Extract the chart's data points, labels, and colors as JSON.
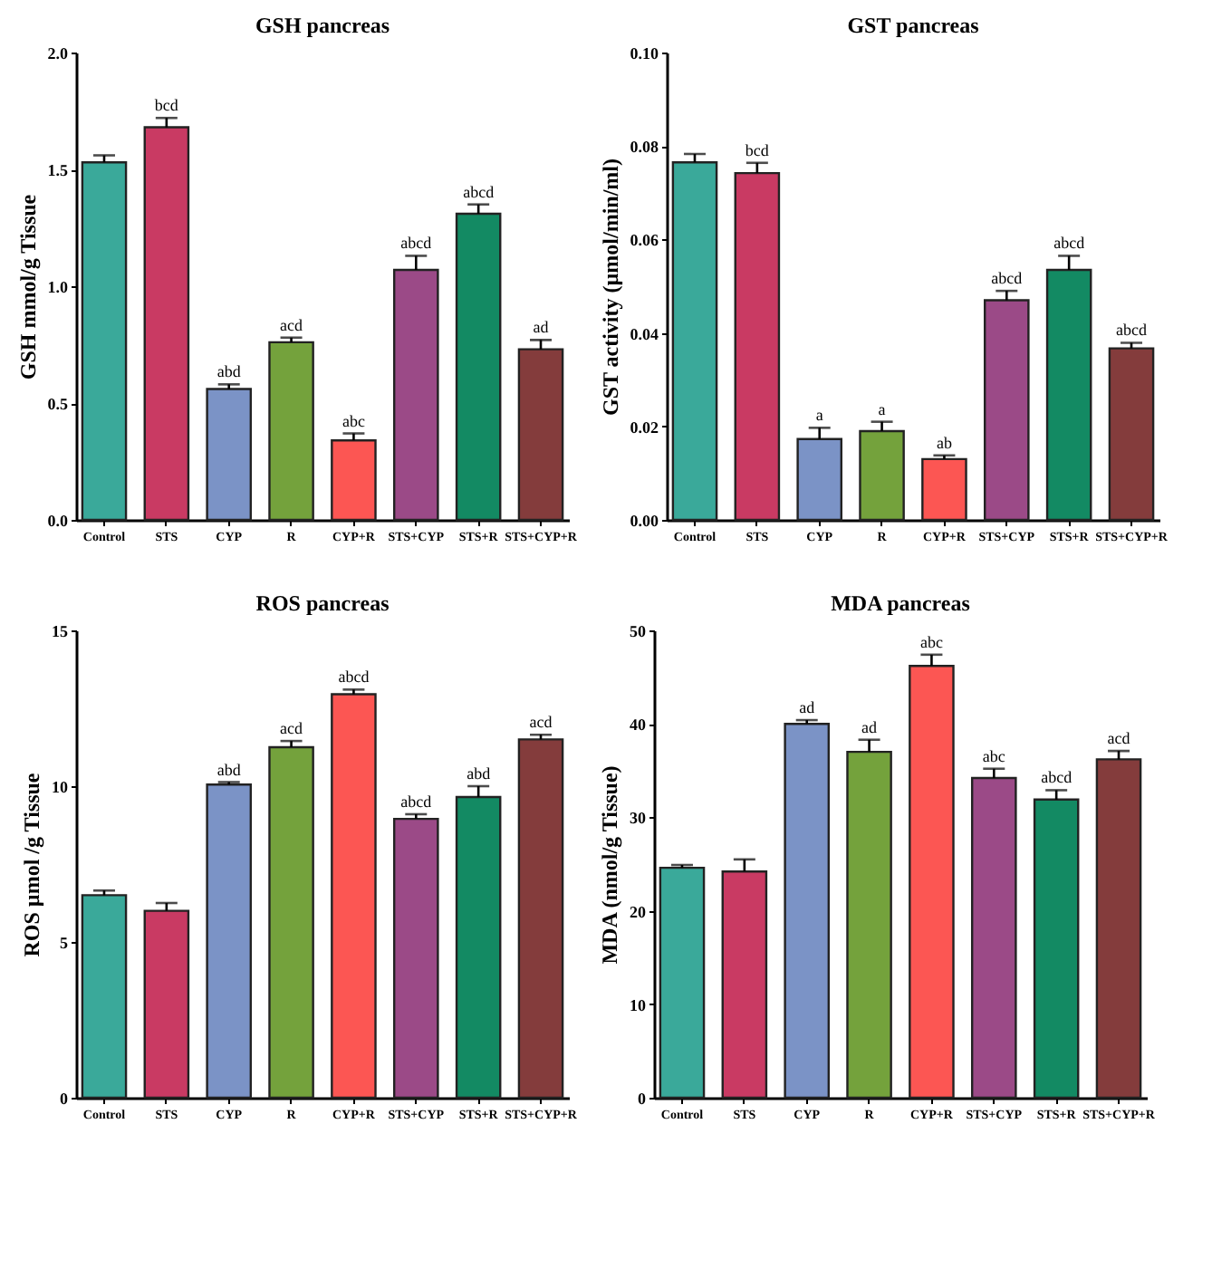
{
  "chart_data": [
    {
      "type": "bar",
      "title": "GSH pancreas",
      "ylabel": "GSH mmol/g Tissue",
      "categories": [
        "Control",
        "STS",
        "CYP",
        "R",
        "CYP+R",
        "STS+CYP",
        "STS+R",
        "STS+CYP+R"
      ],
      "values": [
        1.53,
        1.68,
        0.56,
        0.76,
        0.34,
        1.07,
        1.31,
        0.73
      ],
      "errors": [
        0.03,
        0.04,
        0.02,
        0.02,
        0.03,
        0.06,
        0.04,
        0.04
      ],
      "colors": [
        "#3aa99a",
        "#c93a63",
        "#7b93c6",
        "#74a23c",
        "#fc5653",
        "#9b4a87",
        "#138a63",
        "#843c3c"
      ],
      "ylim": [
        0,
        2.0
      ],
      "yticks": [
        {
          "value": 0,
          "label": "0.0"
        },
        {
          "value": 0.5,
          "label": "0.5"
        },
        {
          "value": 1,
          "label": "1.0"
        },
        {
          "value": 1.5,
          "label": "1.5"
        },
        {
          "value": 2,
          "label": "2.0"
        }
      ],
      "annotations": [
        {
          "text": "bcd",
          "x": "STS",
          "y": 1.72
        },
        {
          "text": "abd",
          "x": "CYP",
          "y": 0.58
        },
        {
          "text": "acd",
          "x": "R",
          "y": 0.78
        },
        {
          "text": "abc",
          "x": "CYP+R",
          "y": 0.37
        },
        {
          "text": "abcd",
          "x": "STS+CYP",
          "y": 1.13
        },
        {
          "text": "abcd",
          "x": "STS+R",
          "y": 1.35
        },
        {
          "text": "ad",
          "x": "STS+CYP+R",
          "y": 0.77
        }
      ],
      "grid": false
    },
    {
      "type": "bar",
      "title": "GST pancreas",
      "ylabel": "GST activity (µmol/min/ml)",
      "categories": [
        "Control",
        "STS",
        "CYP",
        "R",
        "CYP+R",
        "STS+CYP",
        "STS+R",
        "STS+CYP+R"
      ],
      "values": [
        0.0765,
        0.0742,
        0.0173,
        0.019,
        0.013,
        0.047,
        0.0535,
        0.0367
      ],
      "errors": [
        0.0018,
        0.0022,
        0.0024,
        0.002,
        0.0008,
        0.002,
        0.003,
        0.0012
      ],
      "colors": [
        "#3aa99a",
        "#c93a63",
        "#7b93c6",
        "#74a23c",
        "#fc5653",
        "#9b4a87",
        "#138a63",
        "#843c3c"
      ],
      "ylim": [
        0,
        0.1
      ],
      "yticks": [
        {
          "value": 0,
          "label": "0.00"
        },
        {
          "value": 0.02,
          "label": "0.02"
        },
        {
          "value": 0.04,
          "label": "0.04"
        },
        {
          "value": 0.06,
          "label": "0.06"
        },
        {
          "value": 0.08,
          "label": "0.08"
        },
        {
          "value": 0.1,
          "label": "0.10"
        }
      ],
      "annotations": [
        {
          "text": "bcd",
          "x": "STS",
          "y": 0.0764
        },
        {
          "text": "a",
          "x": "CYP",
          "y": 0.0197
        },
        {
          "text": "a",
          "x": "R",
          "y": 0.021
        },
        {
          "text": "ab",
          "x": "CYP+R",
          "y": 0.0138
        },
        {
          "text": "abcd",
          "x": "STS+CYP",
          "y": 0.049
        },
        {
          "text": "abcd",
          "x": "STS+R",
          "y": 0.0565
        },
        {
          "text": "abcd",
          "x": "STS+CYP+R",
          "y": 0.0379
        }
      ],
      "grid": false
    },
    {
      "type": "bar",
      "title": "ROS pancreas",
      "ylabel": "ROS µmol /g Tissue",
      "categories": [
        "Control",
        "STS",
        "CYP",
        "R",
        "CYP+R",
        "STS+CYP",
        "STS+R",
        "STS+CYP+R"
      ],
      "values": [
        6.5,
        6.0,
        10.05,
        11.25,
        12.95,
        8.95,
        9.65,
        11.5
      ],
      "errors": [
        0.15,
        0.25,
        0.08,
        0.2,
        0.15,
        0.15,
        0.35,
        0.15
      ],
      "colors": [
        "#3aa99a",
        "#c93a63",
        "#7b93c6",
        "#74a23c",
        "#fc5653",
        "#9b4a87",
        "#138a63",
        "#843c3c"
      ],
      "ylim": [
        0,
        15
      ],
      "yticks": [
        0,
        5,
        10,
        15
      ],
      "annotations": [
        {
          "text": "abd",
          "x": "CYP",
          "y": 10.13
        },
        {
          "text": "acd",
          "x": "R",
          "y": 11.45
        },
        {
          "text": "abcd",
          "x": "CYP+R",
          "y": 13.1
        },
        {
          "text": "abcd",
          "x": "STS+CYP",
          "y": 9.1
        },
        {
          "text": "abd",
          "x": "STS+R",
          "y": 10.0
        },
        {
          "text": "acd",
          "x": "STS+CYP+R",
          "y": 11.65
        }
      ],
      "grid": false
    },
    {
      "type": "bar",
      "title": "MDA pancreas",
      "ylabel": "MDA (nmol/g Tissue)",
      "categories": [
        "Control",
        "STS",
        "CYP",
        "R",
        "CYP+R",
        "STS+CYP",
        "STS+R",
        "STS+CYP+R"
      ],
      "values": [
        24.6,
        24.2,
        40,
        37,
        46.2,
        34.2,
        31.9,
        36.2
      ],
      "errors": [
        0.3,
        1.3,
        0.4,
        1.3,
        1.2,
        1.0,
        1.0,
        0.9
      ],
      "colors": [
        "#3aa99a",
        "#c93a63",
        "#7b93c6",
        "#74a23c",
        "#fc5653",
        "#9b4a87",
        "#138a63",
        "#843c3c"
      ],
      "ylim": [
        0,
        50
      ],
      "yticks": [
        0,
        10,
        20,
        30,
        40,
        50
      ],
      "annotations": [
        {
          "text": "ad",
          "x": "CYP",
          "y": 40.4
        },
        {
          "text": "ad",
          "x": "R",
          "y": 38.3
        },
        {
          "text": "abc",
          "x": "CYP+R",
          "y": 47.4
        },
        {
          "text": "abc",
          "x": "STS+CYP",
          "y": 35.2
        },
        {
          "text": "abcd",
          "x": "STS+R",
          "y": 32.9
        },
        {
          "text": "acd",
          "x": "STS+CYP+R",
          "y": 37.1
        }
      ],
      "grid": false
    }
  ]
}
